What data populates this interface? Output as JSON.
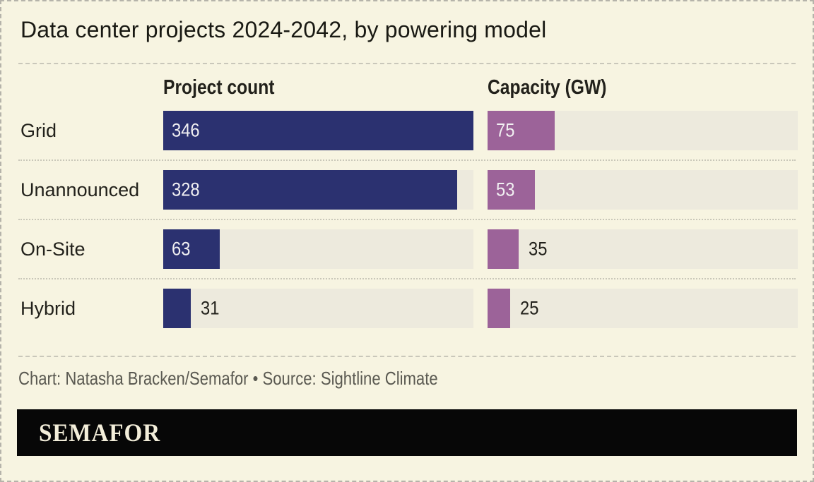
{
  "title": "Data center projects 2024-2042, by powering model",
  "chart_data": {
    "type": "bar",
    "orientation": "horizontal",
    "categories": [
      "Grid",
      "Unannounced",
      "On-Site",
      "Hybrid"
    ],
    "series": [
      {
        "name": "Project count",
        "values": [
          346,
          328,
          63,
          31
        ],
        "color": "#2b3170"
      },
      {
        "name": "Capacity (GW)",
        "values": [
          75,
          53,
          35,
          25
        ],
        "color": "#9c6399"
      }
    ],
    "scale_max": 346,
    "shared_scale": true,
    "value_labels": "inside bar start; outside right of bar when bar is short",
    "track_color": "#edeadd",
    "grid": "off",
    "legend": "column headers above each panel"
  },
  "footer": {
    "credit": "Chart: Natasha Bracken/Semafor • Source: Sightline Climate",
    "logo_text": "SEMAFOR"
  },
  "colors": {
    "background": "#f7f4e1",
    "navy": "#2b3170",
    "purple": "#9c6399",
    "track": "#edeadd",
    "text_dark": "#22211b",
    "text_muted": "#5a5951",
    "logo_bar": "#070707",
    "logo_text": "#f3eeda",
    "border_dashed": "#b5b3aa"
  }
}
